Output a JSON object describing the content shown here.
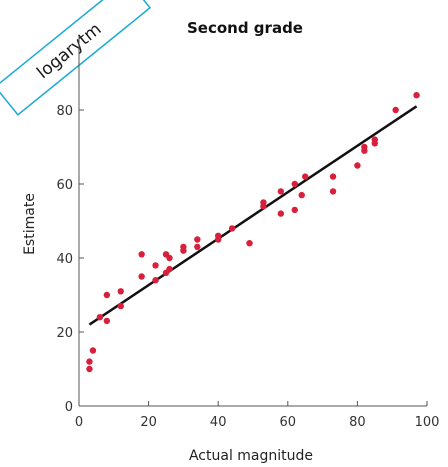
{
  "ribbon": {
    "text": "logarytm",
    "border_color": "#19a9d6"
  },
  "chart_data": {
    "type": "scatter",
    "title": "Second grade",
    "xlabel": "Actual magnitude",
    "ylabel": "Estimate",
    "xlim": [
      0,
      100
    ],
    "ylim": [
      0,
      100
    ],
    "xticks": [
      0,
      20,
      40,
      60,
      80,
      100
    ],
    "yticks": [
      0,
      20,
      40,
      60,
      80
    ],
    "grid": false,
    "point_color": "#d81f3c",
    "line_color": "#111111",
    "points": [
      [
        3,
        10
      ],
      [
        3,
        12
      ],
      [
        4,
        15
      ],
      [
        6,
        24
      ],
      [
        8,
        23
      ],
      [
        8,
        30
      ],
      [
        12,
        27
      ],
      [
        12,
        31
      ],
      [
        18,
        35
      ],
      [
        18,
        41
      ],
      [
        22,
        34
      ],
      [
        22,
        38
      ],
      [
        25,
        36
      ],
      [
        25,
        41
      ],
      [
        26,
        37
      ],
      [
        26,
        40
      ],
      [
        30,
        42
      ],
      [
        30,
        43
      ],
      [
        34,
        43
      ],
      [
        34,
        45
      ],
      [
        40,
        45
      ],
      [
        40,
        46
      ],
      [
        44,
        48
      ],
      [
        49,
        44
      ],
      [
        53,
        54
      ],
      [
        53,
        55
      ],
      [
        58,
        52
      ],
      [
        58,
        58
      ],
      [
        62,
        53
      ],
      [
        62,
        60
      ],
      [
        64,
        57
      ],
      [
        65,
        62
      ],
      [
        73,
        58
      ],
      [
        73,
        62
      ],
      [
        80,
        65
      ],
      [
        82,
        69
      ],
      [
        82,
        70
      ],
      [
        85,
        71
      ],
      [
        85,
        72
      ],
      [
        91,
        80
      ],
      [
        97,
        84
      ]
    ],
    "fit_line": {
      "x": [
        3,
        97
      ],
      "y": [
        22,
        81
      ]
    }
  }
}
